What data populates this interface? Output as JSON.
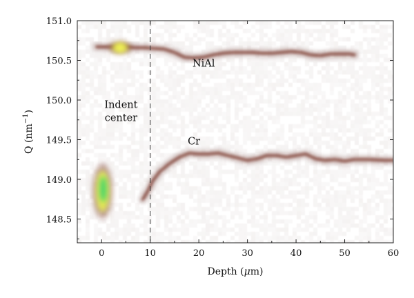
{
  "chart_data": {
    "type": "heatmap",
    "xlabel_main": "Depth (",
    "xlabel_greek": "μ",
    "xlabel_unit": "m)",
    "ylabel_main": "Q (nm",
    "ylabel_sup": "−1",
    "ylabel_close": ")",
    "xlim": [
      -5,
      60
    ],
    "ylim": [
      148.2,
      151.0
    ],
    "x_ticks": [
      0,
      10,
      20,
      30,
      40,
      50,
      60
    ],
    "x_tick_labels": [
      "0",
      "10",
      "20",
      "30",
      "40",
      "50",
      "60"
    ],
    "y_ticks": [
      148.5,
      149.0,
      149.5,
      150.0,
      150.5,
      151.0
    ],
    "y_tick_labels": [
      "148.5",
      "149.0",
      "149.5",
      "150.0",
      "150.5",
      "151.0"
    ],
    "reference_line_x": 10,
    "annotations": [
      {
        "id": "nial",
        "lines": [
          "NiAl"
        ],
        "x": 21,
        "y": 150.42
      },
      {
        "id": "indent",
        "lines": [
          "Indent",
          "center"
        ],
        "x": 4,
        "y": 149.9
      },
      {
        "id": "cr",
        "lines": [
          "Cr"
        ],
        "x": 19,
        "y": 149.44
      }
    ],
    "series": [
      {
        "name": "NiAl",
        "x": [
          -1,
          1,
          3,
          5,
          7,
          9,
          11,
          13,
          15,
          17,
          19,
          21,
          23,
          25,
          27,
          29,
          31,
          33,
          35,
          37,
          39,
          41,
          43,
          45,
          47,
          49,
          51,
          52
        ],
        "y": [
          150.67,
          150.67,
          150.67,
          150.67,
          150.66,
          150.66,
          150.65,
          150.64,
          150.6,
          150.54,
          150.53,
          150.54,
          150.57,
          150.59,
          150.6,
          150.6,
          150.6,
          150.59,
          150.59,
          150.6,
          150.61,
          150.6,
          150.57,
          150.56,
          150.58,
          150.58,
          150.58,
          150.57
        ]
      },
      {
        "name": "Cr",
        "x": [
          8.5,
          9.5,
          10.5,
          12,
          14,
          16,
          18,
          20,
          22,
          24,
          26,
          28,
          30,
          32,
          34,
          36,
          38,
          40,
          42,
          44,
          46,
          48,
          50,
          52,
          55,
          58,
          60
        ],
        "y": [
          148.75,
          148.85,
          148.98,
          149.1,
          149.2,
          149.28,
          149.33,
          149.32,
          149.32,
          149.33,
          149.3,
          149.27,
          149.24,
          149.26,
          149.3,
          149.3,
          149.28,
          149.3,
          149.32,
          149.26,
          149.24,
          149.25,
          149.23,
          149.25,
          149.25,
          149.24,
          149.24
        ]
      }
    ],
    "hotspots": [
      {
        "id": "indent-low",
        "x": 0.2,
        "y": 148.85,
        "spread_x": 1.3,
        "spread_y": 0.26,
        "peak": "green"
      },
      {
        "id": "indent-high",
        "x": 3.8,
        "y": 150.66,
        "spread_x": 1.6,
        "spread_y": 0.06,
        "peak": "yellow"
      }
    ],
    "colors": {
      "background": "#ffffff",
      "band": "#7b3b2e",
      "hot_yellow": "#e8f04a",
      "hot_green": "#3fd46a",
      "axis": "#222222"
    }
  }
}
